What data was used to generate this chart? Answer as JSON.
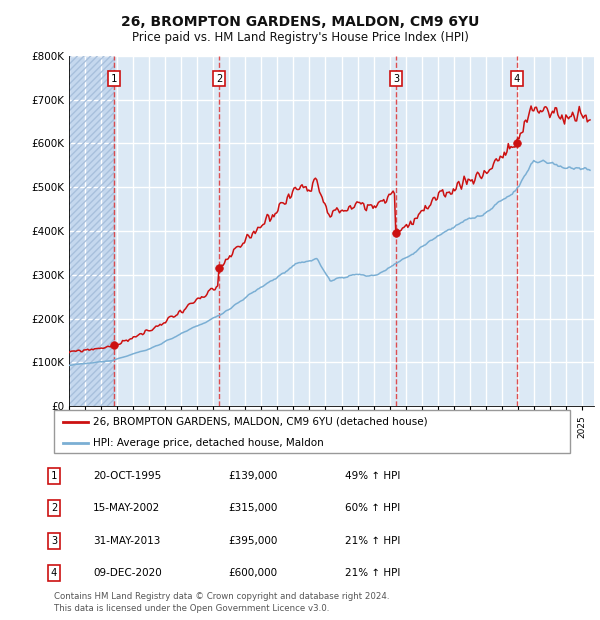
{
  "title1": "26, BROMPTON GARDENS, MALDON, CM9 6YU",
  "title2": "Price paid vs. HM Land Registry's House Price Index (HPI)",
  "ylim": [
    0,
    800000
  ],
  "yticks": [
    0,
    100000,
    200000,
    300000,
    400000,
    500000,
    600000,
    700000,
    800000
  ],
  "ytick_labels": [
    "£0",
    "£100K",
    "£200K",
    "£300K",
    "£400K",
    "£500K",
    "£600K",
    "£700K",
    "£800K"
  ],
  "xlim_start": 1993.0,
  "xlim_end": 2025.75,
  "sale_dates": [
    1995.8,
    2002.37,
    2013.42,
    2020.93
  ],
  "sale_prices": [
    139000,
    315000,
    395000,
    600000
  ],
  "sale_labels": [
    "1",
    "2",
    "3",
    "4"
  ],
  "hpi_color": "#7bafd4",
  "price_color": "#cc1111",
  "background_color": "#dce9f5",
  "grid_color": "#ffffff",
  "vline_color": "#dd3333",
  "legend_label_price": "26, BROMPTON GARDENS, MALDON, CM9 6YU (detached house)",
  "legend_label_hpi": "HPI: Average price, detached house, Maldon",
  "table_rows": [
    [
      "1",
      "20-OCT-1995",
      "£139,000",
      "49% ↑ HPI"
    ],
    [
      "2",
      "15-MAY-2002",
      "£315,000",
      "60% ↑ HPI"
    ],
    [
      "3",
      "31-MAY-2013",
      "£395,000",
      "21% ↑ HPI"
    ],
    [
      "4",
      "09-DEC-2020",
      "£600,000",
      "21% ↑ HPI"
    ]
  ],
  "footer": "Contains HM Land Registry data © Crown copyright and database right 2024.\nThis data is licensed under the Open Government Licence v3.0."
}
